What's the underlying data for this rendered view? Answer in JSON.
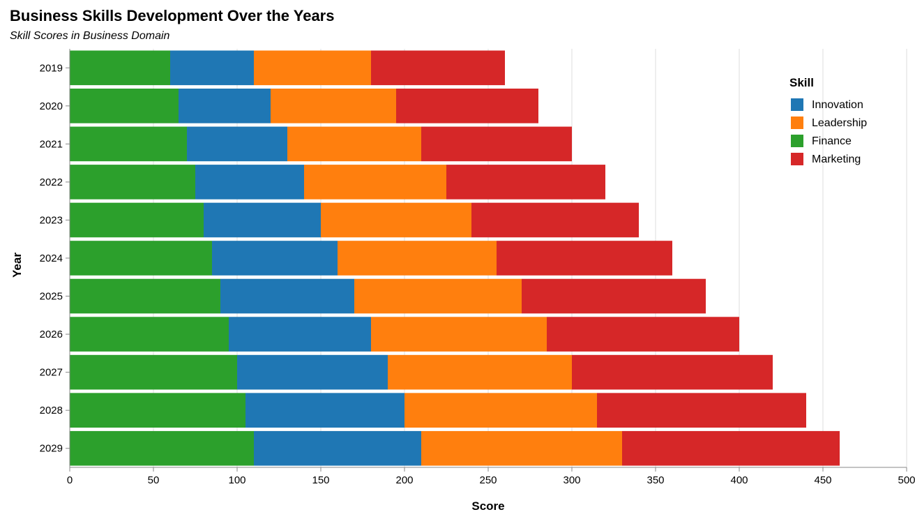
{
  "chart_data": {
    "type": "bar",
    "orientation": "horizontal",
    "stacked": true,
    "title": "Business Skills Development Over the Years",
    "subtitle": "Skill Scores in Business Domain",
    "xlabel": "Score",
    "ylabel": "Year",
    "xlim": [
      0,
      500
    ],
    "x_ticks": [
      0,
      50,
      100,
      150,
      200,
      250,
      300,
      350,
      400,
      450,
      500
    ],
    "grid": true,
    "legend": {
      "title": "Skill",
      "position": "top-right"
    },
    "categories": [
      "2019",
      "2020",
      "2021",
      "2022",
      "2023",
      "2024",
      "2025",
      "2026",
      "2027",
      "2028",
      "2029"
    ],
    "stack_order": [
      "Finance",
      "Innovation",
      "Leadership",
      "Marketing"
    ],
    "series": [
      {
        "name": "Innovation",
        "color": "#1f77b4",
        "values": [
          50,
          55,
          60,
          65,
          70,
          75,
          80,
          85,
          90,
          95,
          100
        ]
      },
      {
        "name": "Leadership",
        "color": "#ff7f0e",
        "values": [
          70,
          75,
          80,
          85,
          90,
          95,
          100,
          105,
          110,
          115,
          120
        ]
      },
      {
        "name": "Finance",
        "color": "#2ca02c",
        "values": [
          60,
          65,
          70,
          75,
          80,
          85,
          90,
          95,
          100,
          105,
          110
        ]
      },
      {
        "name": "Marketing",
        "color": "#d62728",
        "values": [
          80,
          85,
          90,
          95,
          100,
          105,
          110,
          115,
          120,
          125,
          130
        ]
      }
    ]
  }
}
